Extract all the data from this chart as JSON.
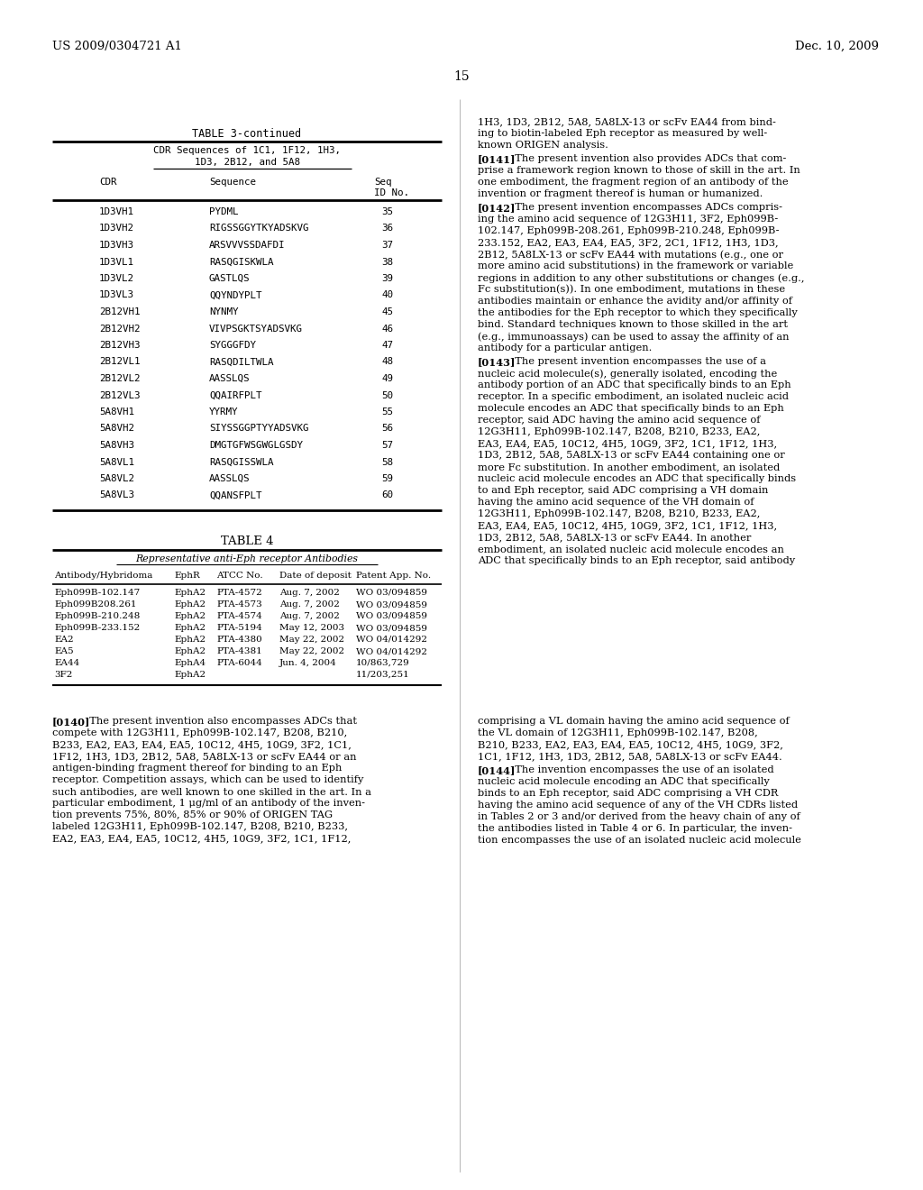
{
  "header_left": "US 2009/0304721 A1",
  "header_right": "Dec. 10, 2009",
  "page_number": "15",
  "table3_title": "TABLE 3-continued",
  "table3_subtitle1": "CDR Sequences of 1C1, 1F12, 1H3,",
  "table3_subtitle2": "1D3, 2B12, and 5A8",
  "table3_col1": "CDR",
  "table3_col2": "Sequence",
  "table3_col3_line1": "Seq",
  "table3_col3_line2": "ID No.",
  "table3_rows": [
    [
      "1D3VH1",
      "PYDML",
      "35"
    ],
    [
      "1D3VH2",
      "RIGSSGGYTKYADSKVG",
      "36"
    ],
    [
      "1D3VH3",
      "ARSVVVSSDAFDI",
      "37"
    ],
    [
      "1D3VL1",
      "RASQGISKWLA",
      "38"
    ],
    [
      "1D3VL2",
      "GASTLQS",
      "39"
    ],
    [
      "1D3VL3",
      "QQYNDYPLT",
      "40"
    ],
    [
      "2B12VH1",
      "NYNMY",
      "45"
    ],
    [
      "2B12VH2",
      "VIVPSGKTSYADSVKG",
      "46"
    ],
    [
      "2B12VH3",
      "SYGGGFDY",
      "47"
    ],
    [
      "2B12VL1",
      "RASQDILTWLA",
      "48"
    ],
    [
      "2B12VL2",
      "AASSLQS",
      "49"
    ],
    [
      "2B12VL3",
      "QQAIRFPLT",
      "50"
    ],
    [
      "5A8VH1",
      "YYRMY",
      "55"
    ],
    [
      "5A8VH2",
      "SIYSSGGPTYYADSVKG",
      "56"
    ],
    [
      "5A8VH3",
      "DMGTGFWSGWGLGSDY",
      "57"
    ],
    [
      "5A8VL1",
      "RASQGISSWLA",
      "58"
    ],
    [
      "5A8VL2",
      "AASSLQS",
      "59"
    ],
    [
      "5A8VL3",
      "QQANSFPLT",
      "60"
    ]
  ],
  "table4_title": "TABLE 4",
  "table4_subtitle": "Representative anti-Eph receptor Antibodies",
  "table4_cols": [
    "Antibody/Hybridoma",
    "EphR",
    "ATCC No.",
    "Date of deposit",
    "Patent App. No."
  ],
  "table4_rows": [
    [
      "Eph099B-102.147",
      "EphA2",
      "PTA-4572",
      "Aug. 7, 2002",
      "WO 03/094859"
    ],
    [
      "Eph099B208.261",
      "EphA2",
      "PTA-4573",
      "Aug. 7, 2002",
      "WO 03/094859"
    ],
    [
      "Eph099B-210.248",
      "EphA2",
      "PTA-4574",
      "Aug. 7, 2002",
      "WO 03/094859"
    ],
    [
      "Eph099B-233.152",
      "EphA2",
      "PTA-5194",
      "May 12, 2003",
      "WO 03/094859"
    ],
    [
      "EA2",
      "EphA2",
      "PTA-4380",
      "May 22, 2002",
      "WO 04/014292"
    ],
    [
      "EA5",
      "EphA2",
      "PTA-4381",
      "May 22, 2002",
      "WO 04/014292"
    ],
    [
      "EA44",
      "EphA4",
      "PTA-6044",
      "Jun. 4, 2004",
      "10/863,729"
    ],
    [
      "3F2",
      "EphA2",
      "",
      "",
      "11/203,251"
    ]
  ],
  "right_top_text": "1H3, 1D3, 2B12, 5A8, 5A8LX-13 or scFv EA44 from bind-\ning to biotin-labeled Eph receptor as measured by well-\nknown ORIGEN analysis.",
  "para_0141": "The present invention also provides ADCs that com-\nprise a framework region known to those of skill in the art. In\none embodiment, the fragment region of an antibody of the\ninvention or fragment thereof is human or humanized.",
  "para_0142": "The present invention encompasses ADCs compris-\ning the amino acid sequence of 12G3H11, 3F2, Eph099B-\n102.147, Eph099B-208.261, Eph099B-210.248, Eph099B-\n233.152, EA2, EA3, EA4, EA5, 3F2, 2C1, 1F12, 1H3, 1D3,\n2B12, 5A8LX-13 or scFv EA44 with mutations (e.g., one or\nmore amino acid substitutions) in the framework or variable\nregions in addition to any other substitutions or changes (e.g.,\nFc substitution(s)). In one embodiment, mutations in these\nantibodies maintain or enhance the avidity and/or affinity of\nthe antibodies for the Eph receptor to which they specifically\nbind. Standard techniques known to those skilled in the art\n(e.g., immunoassays) can be used to assay the affinity of an\nantibody for a particular antigen.",
  "para_0143": "The present invention encompasses the use of a\nnucleic acid molecule(s), generally isolated, encoding the\nantibody portion of an ADC that specifically binds to an Eph\nreceptor. In a specific embodiment, an isolated nucleic acid\nmolecule encodes an ADC that specifically binds to an Eph\nreceptor, said ADC having the amino acid sequence of\n12G3H11, Eph099B-102.147, B208, B210, B233, EA2,\nEA3, EA4, EA5, 10C12, 4H5, 10G9, 3F2, 1C1, 1F12, 1H3,\n1D3, 2B12, 5A8, 5A8LX-13 or scFv EA44 containing one or\nmore Fc substitution. In another embodiment, an isolated\nnucleic acid molecule encodes an ADC that specifically binds\nto and Eph receptor, said ADC comprising a VH domain\nhaving the amino acid sequence of the VH domain of\n12G3H11, Eph099B-102.147, B208, B210, B233, EA2,\nEA3, EA4, EA5, 10C12, 4H5, 10G9, 3F2, 1C1, 1F12, 1H3,\n1D3, 2B12, 5A8, 5A8LX-13 or scFv EA44. In another\nembodiment, an isolated nucleic acid molecule encodes an\nADC that specifically binds to an Eph receptor, said antibody",
  "para_0140": "The present invention also encompasses ADCs that\ncompete with 12G3H11, Eph099B-102.147, B208, B210,\nB233, EA2, EA3, EA4, EA5, 10C12, 4H5, 10G9, 3F2, 1C1,\n1F12, 1H3, 1D3, 2B12, 5A8, 5A8LX-13 or scFv EA44 or an\nantigen-binding fragment thereof for binding to an Eph\nreceptor. Competition assays, which can be used to identify\nsuch antibodies, are well known to one skilled in the art. In a\nparticular embodiment, 1 μg/ml of an antibody of the inven-\ntion prevents 75%, 80%, 85% or 90% of ORIGEN TAG\nlabeled 12G3H11, Eph099B-102.147, B208, B210, B233,\nEA2, EA3, EA4, EA5, 10C12, 4H5, 10G9, 3F2, 1C1, 1F12,",
  "bottom_right_top": "comprising a VL domain having the amino acid sequence of\nthe VL domain of 12G3H11, Eph099B-102.147, B208,\nB210, B233, EA2, EA3, EA4, EA5, 10C12, 4H5, 10G9, 3F2,\n1C1, 1F12, 1H3, 1D3, 2B12, 5A8, 5A8LX-13 or scFv EA44.",
  "para_0144": "The invention encompasses the use of an isolated\nnucleic acid molecule encoding an ADC that specifically\nbinds to an Eph receptor, said ADC comprising a VH CDR\nhaving the amino acid sequence of any of the VH CDRs listed\nin Tables 2 or 3 and/or derived from the heavy chain of any of\nthe antibodies listed in Table 4 or 6. In particular, the inven-\ntion encompasses the use of an isolated nucleic acid molecule"
}
